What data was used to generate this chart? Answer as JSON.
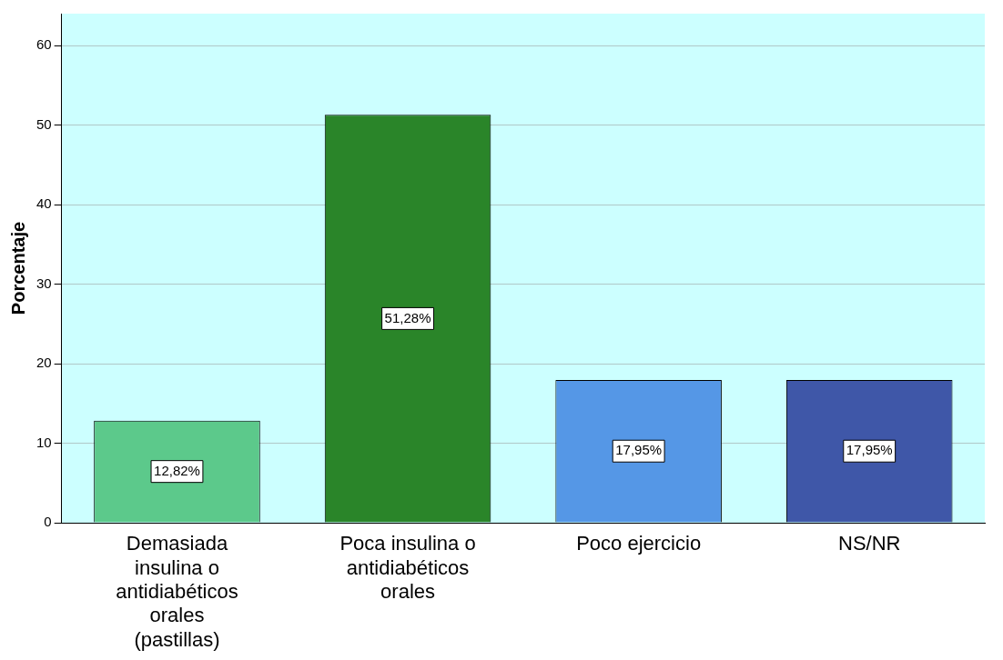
{
  "chart_data": {
    "type": "bar",
    "categories": [
      "Demasiada insulina o antidiabéticos orales (pastillas)",
      "Poca insulina o antidiabéticos orales",
      "Poco ejercicio",
      "NS/NR"
    ],
    "values": [
      12.82,
      51.28,
      17.95,
      17.95
    ],
    "colors": [
      "#5cc98b",
      "#2a8529",
      "#5597e6",
      "#3f57a8"
    ],
    "value_labels": [
      "12,82%",
      "51,28%",
      "17,95%",
      "17,95%"
    ],
    "ylabel": "Porcentaje",
    "ylim": [
      0,
      64
    ],
    "yticks": [
      0,
      10,
      20,
      30,
      40,
      50,
      60
    ],
    "grid": "y",
    "legend": false
  }
}
